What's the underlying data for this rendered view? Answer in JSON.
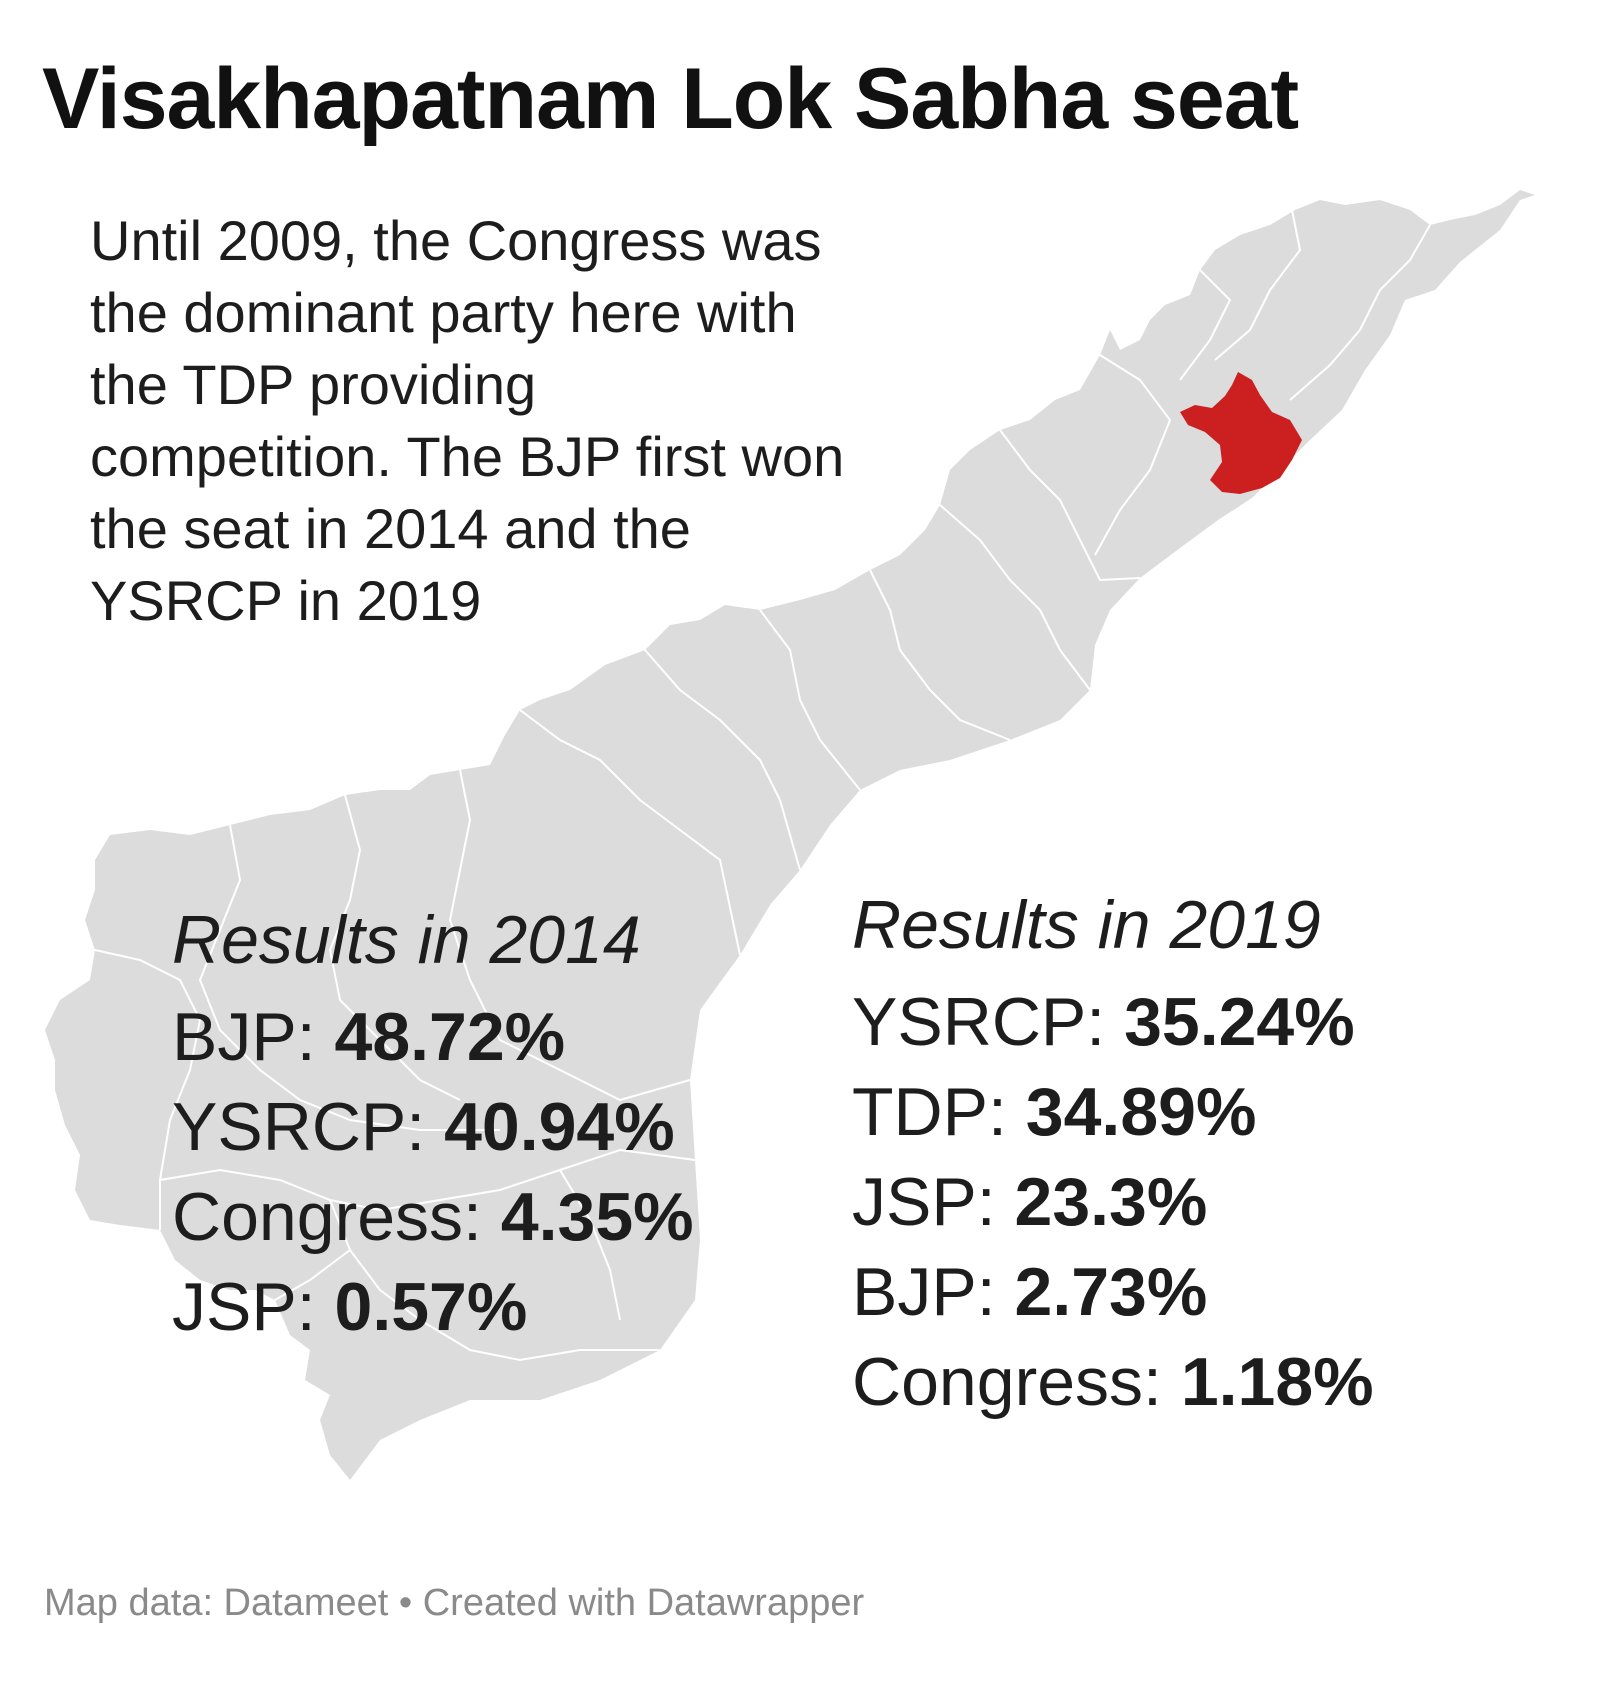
{
  "title": "Visakhapatnam Lok Sabha seat",
  "intro": "Until 2009, the Congress was the dominant party here with the TDP providing competition. The BJP first won the seat in 2014 and the YSRCP in 2019",
  "map": {
    "region_fill": "#dcdcdc",
    "boundary_color": "#ffffff",
    "highlight_fill": "#cc1f1f"
  },
  "results_2014": {
    "heading": "Results in 2014",
    "rows": [
      {
        "party": "BJP",
        "value": "48.72%"
      },
      {
        "party": "YSRCP",
        "value": "40.94%"
      },
      {
        "party": "Congress",
        "value": "4.35%"
      },
      {
        "party": "JSP",
        "value": "0.57%"
      }
    ]
  },
  "results_2019": {
    "heading": "Results in 2019",
    "rows": [
      {
        "party": "YSRCP",
        "value": "35.24%"
      },
      {
        "party": "TDP",
        "value": "34.89%"
      },
      {
        "party": "JSP",
        "value": "23.3%"
      },
      {
        "party": "BJP",
        "value": "2.73%"
      },
      {
        "party": "Congress",
        "value": "1.18%"
      }
    ]
  },
  "footer": "Map data: Datameet • Created with Datawrapper"
}
